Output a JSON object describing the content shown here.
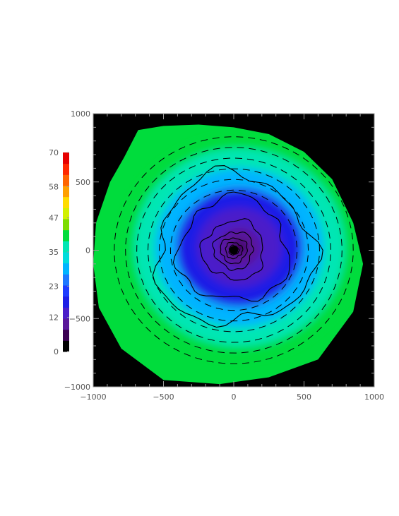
{
  "chart_data": {
    "type": "heatmap",
    "title": "",
    "xlabel": "",
    "ylabel": "",
    "xlim": [
      -1000,
      1000
    ],
    "ylim": [
      -1000,
      1000
    ],
    "x_ticks": [
      -1000,
      -500,
      0,
      500,
      1000
    ],
    "y_ticks": [
      -1000,
      -500,
      0,
      500,
      1000
    ],
    "x_tick_labels": [
      "−1000",
      "−500",
      "0",
      "500",
      "1000"
    ],
    "y_tick_labels": [
      "−1000",
      "−500",
      "0",
      "500",
      "1000"
    ],
    "colorbar": {
      "min": 0,
      "max": 70,
      "tick_values": [
        0,
        12,
        23,
        35,
        47,
        58,
        70
      ],
      "tick_labels": [
        "0",
        "12",
        "23",
        "35",
        "47",
        "58",
        "70"
      ],
      "colors": [
        "#000000",
        "#3b0052",
        "#5a189a",
        "#4b1ec9",
        "#1e1ee6",
        "#1e3cff",
        "#1e78ff",
        "#00b4ff",
        "#00dcdc",
        "#00e6b4",
        "#00dc3c",
        "#7ddc00",
        "#d2f000",
        "#ffdc00",
        "#ffa000",
        "#ff6400",
        "#ff2800",
        "#e60000"
      ]
    },
    "background_color": "#000000",
    "center": [
      0,
      0
    ],
    "radial_profile": [
      {
        "r": 0,
        "value": 0
      },
      {
        "r": 50,
        "value": 6
      },
      {
        "r": 150,
        "value": 10
      },
      {
        "r": 300,
        "value": 14
      },
      {
        "r": 450,
        "value": 19
      },
      {
        "r": 600,
        "value": 30
      },
      {
        "r": 750,
        "value": 38
      },
      {
        "r": 850,
        "value": 40
      }
    ],
    "disk_outline": [
      [
        -680,
        880
      ],
      [
        -500,
        910
      ],
      [
        -250,
        920
      ],
      [
        0,
        900
      ],
      [
        250,
        850
      ],
      [
        500,
        720
      ],
      [
        700,
        520
      ],
      [
        850,
        200
      ],
      [
        920,
        -100
      ],
      [
        850,
        -450
      ],
      [
        600,
        -800
      ],
      [
        250,
        -930
      ],
      [
        -100,
        -980
      ],
      [
        -500,
        -950
      ],
      [
        -800,
        -720
      ],
      [
        -960,
        -420
      ],
      [
        -1000,
        -100
      ],
      [
        -980,
        200
      ],
      [
        -880,
        500
      ],
      [
        -780,
        680
      ]
    ],
    "contour_levels": [
      {
        "value": 2,
        "r": 18
      },
      {
        "value": 4,
        "r": 35
      },
      {
        "value": 6,
        "r": 60
      },
      {
        "value": 8,
        "r": 95
      },
      {
        "value": 10,
        "r": 140
      },
      {
        "value": 12,
        "r": 220
      },
      {
        "value": 16,
        "r": 390
      },
      {
        "value": 20,
        "r": 560
      }
    ],
    "polarization_vectors": {
      "pattern": "azimuthal",
      "rings": [
        450,
        530,
        610,
        690,
        770,
        850
      ]
    }
  }
}
